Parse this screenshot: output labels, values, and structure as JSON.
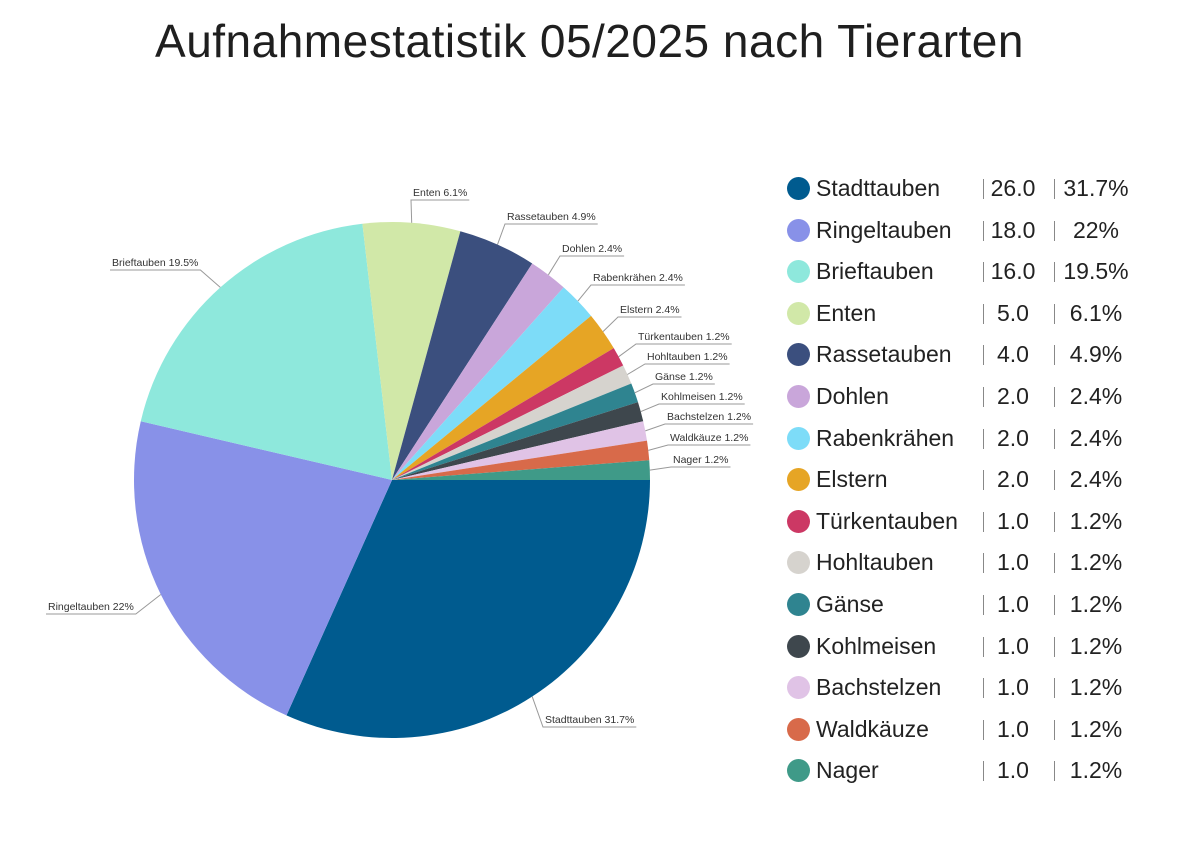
{
  "chart_data": {
    "type": "pie",
    "title": "Aufnahmestatistik 05/2025 nach Tierarten",
    "legend_position": "right",
    "slices": [
      {
        "name": "Stadttauben",
        "value": 26.0,
        "value_label": "26.0",
        "percent": "31.7%",
        "slice_label": "Stadttauben 31.7%",
        "color": "#005b8f"
      },
      {
        "name": "Ringeltauben",
        "value": 18.0,
        "value_label": "18.0",
        "percent": "22%",
        "slice_label": "Ringeltauben 22%",
        "color": "#8891e8"
      },
      {
        "name": "Brieftauben",
        "value": 16.0,
        "value_label": "16.0",
        "percent": "19.5%",
        "slice_label": "Brieftauben 19.5%",
        "color": "#8ee8dc"
      },
      {
        "name": "Enten",
        "value": 5.0,
        "value_label": "5.0",
        "percent": "6.1%",
        "slice_label": "Enten 6.1%",
        "color": "#d1e8a8"
      },
      {
        "name": "Rassetauben",
        "value": 4.0,
        "value_label": "4.0",
        "percent": "4.9%",
        "slice_label": "Rassetauben 4.9%",
        "color": "#3b4f7e"
      },
      {
        "name": "Dohlen",
        "value": 2.0,
        "value_label": "2.0",
        "percent": "2.4%",
        "slice_label": "Dohlen 2.4%",
        "color": "#c9a6da"
      },
      {
        "name": "Rabenkrähen",
        "value": 2.0,
        "value_label": "2.0",
        "percent": "2.4%",
        "slice_label": "Rabenkrähen 2.4%",
        "color": "#7ddcf8"
      },
      {
        "name": "Elstern",
        "value": 2.0,
        "value_label": "2.0",
        "percent": "2.4%",
        "slice_label": "Elstern 2.4%",
        "color": "#e6a525"
      },
      {
        "name": "Türkentauben",
        "value": 1.0,
        "value_label": "1.0",
        "percent": "1.2%",
        "slice_label": "Türkentauben 1.2%",
        "color": "#cc3864"
      },
      {
        "name": "Hohltauben",
        "value": 1.0,
        "value_label": "1.0",
        "percent": "1.2%",
        "slice_label": "Hohltauben 1.2%",
        "color": "#d6d3ce"
      },
      {
        "name": "Gänse",
        "value": 1.0,
        "value_label": "1.0",
        "percent": "1.2%",
        "slice_label": "Gänse 1.2%",
        "color": "#2f8490"
      },
      {
        "name": "Kohlmeisen",
        "value": 1.0,
        "value_label": "1.0",
        "percent": "1.2%",
        "slice_label": "Kohlmeisen 1.2%",
        "color": "#3e474d"
      },
      {
        "name": "Bachstelzen",
        "value": 1.0,
        "value_label": "1.0",
        "percent": "1.2%",
        "slice_label": "Bachstelzen 1.2%",
        "color": "#e0c3e6"
      },
      {
        "name": "Waldkäuze",
        "value": 1.0,
        "value_label": "1.0",
        "percent": "1.2%",
        "slice_label": "Waldkäuze 1.2%",
        "color": "#d86a4a"
      },
      {
        "name": "Nager",
        "value": 1.0,
        "value_label": "1.0",
        "percent": "1.2%",
        "slice_label": "Nager 1.2%",
        "color": "#3f9a88"
      }
    ]
  }
}
